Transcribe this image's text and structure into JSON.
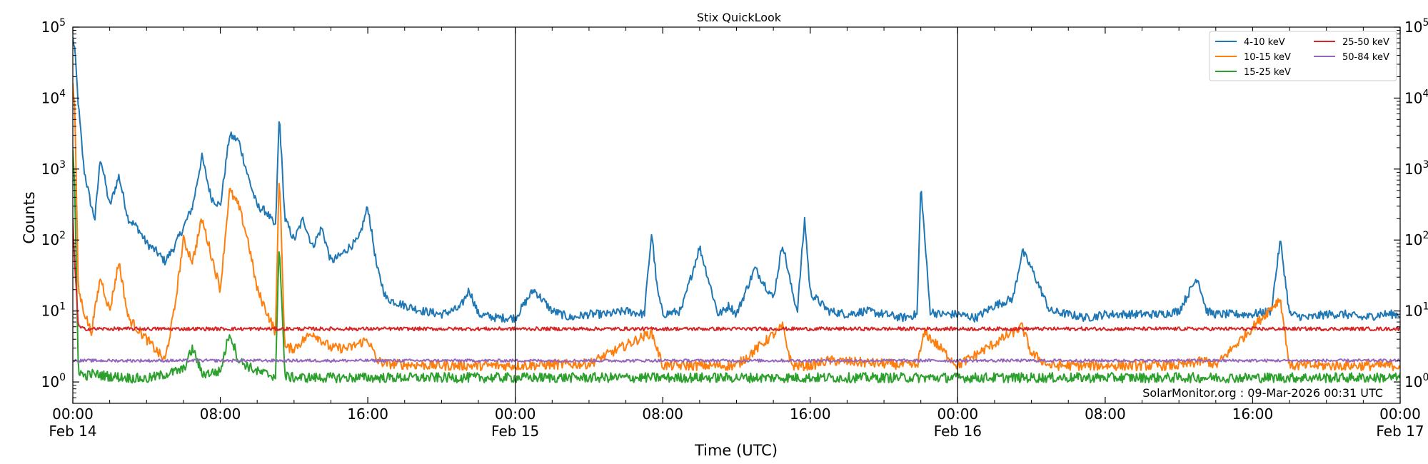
{
  "chart_data": {
    "type": "line",
    "title": "Stix QuickLook",
    "xlabel": "Time (UTC)",
    "ylabel": "Counts",
    "yscale": "log",
    "ylim": [
      0.5,
      100000
    ],
    "xlim_hours": [
      0,
      72
    ],
    "grid": false,
    "legend_position": "top-right",
    "annotation": "SolarMonitor.org : 09-Mar-2026 00:31 UTC",
    "x_ticks": [
      {
        "hour": 0,
        "line1": "00:00",
        "line2": "Feb 14"
      },
      {
        "hour": 8,
        "line1": "08:00",
        "line2": ""
      },
      {
        "hour": 16,
        "line1": "16:00",
        "line2": ""
      },
      {
        "hour": 24,
        "line1": "00:00",
        "line2": "Feb 15"
      },
      {
        "hour": 32,
        "line1": "08:00",
        "line2": ""
      },
      {
        "hour": 40,
        "line1": "16:00",
        "line2": ""
      },
      {
        "hour": 48,
        "line1": "00:00",
        "line2": "Feb 16"
      },
      {
        "hour": 56,
        "line1": "08:00",
        "line2": ""
      },
      {
        "hour": 64,
        "line1": "16:00",
        "line2": ""
      },
      {
        "hour": 72,
        "line1": "00:00",
        "line2": "Feb 17"
      }
    ],
    "y_ticks": [
      {
        "value": 1,
        "label": "10",
        "exp": "0"
      },
      {
        "value": 10,
        "label": "10",
        "exp": "1"
      },
      {
        "value": 100,
        "label": "10",
        "exp": "2"
      },
      {
        "value": 1000,
        "label": "10",
        "exp": "3"
      },
      {
        "value": 10000,
        "label": "10",
        "exp": "4"
      },
      {
        "value": 100000,
        "label": "10",
        "exp": "5"
      }
    ],
    "day_boundaries_hours": [
      24,
      48
    ],
    "series": [
      {
        "name": "4-10 keV",
        "color": "#1f77b4",
        "x": [
          0,
          0.1,
          0.3,
          0.6,
          1.0,
          1.2,
          1.5,
          2.0,
          2.5,
          3.0,
          3.5,
          4.0,
          4.5,
          5.0,
          5.5,
          6.0,
          6.5,
          7.0,
          7.5,
          8.0,
          8.5,
          9.0,
          9.5,
          10.0,
          10.5,
          11.0,
          11.2,
          11.5,
          12.0,
          12.5,
          13.0,
          13.5,
          14.0,
          14.5,
          15.0,
          15.5,
          16.0,
          16.5,
          17.0,
          18.0,
          19.0,
          20.0,
          21.0,
          21.5,
          22.0,
          23.0,
          24.0,
          25.0,
          26.0,
          26.5,
          27.0,
          28.0,
          29.0,
          30.0,
          31.0,
          31.4,
          31.7,
          32.0,
          33.0,
          34.0,
          35.0,
          35.3,
          35.6,
          36.0,
          37.0,
          38.0,
          38.5,
          39.0,
          39.3,
          39.7,
          40.0,
          41.0,
          42.0,
          43.0,
          44.0,
          45.0,
          45.8,
          46.0,
          46.5,
          47.0,
          48.0,
          49.0,
          50.0,
          51.0,
          51.5,
          52.0,
          53.0,
          54.0,
          55.0,
          56.0,
          57.0,
          58.0,
          59.0,
          60.0,
          61.0,
          61.5,
          62.0,
          63.0,
          64.0,
          65.0,
          65.5,
          66.0,
          67.0,
          68.0,
          69.0,
          70.0,
          71.0,
          72.0
        ],
        "values": [
          70000,
          50000,
          8000,
          1000,
          300,
          200,
          1500,
          300,
          800,
          200,
          150,
          90,
          70,
          50,
          80,
          150,
          300,
          1500,
          400,
          300,
          3000,
          2500,
          800,
          300,
          250,
          150,
          6000,
          200,
          100,
          200,
          80,
          150,
          50,
          60,
          80,
          100,
          300,
          40,
          15,
          12,
          10,
          9,
          11,
          20,
          9,
          8,
          8,
          20,
          10,
          9,
          8,
          9,
          9,
          10,
          9,
          130,
          20,
          9,
          10,
          80,
          9,
          10,
          12,
          9,
          40,
          15,
          90,
          20,
          10,
          200,
          18,
          10,
          9,
          10,
          9,
          8,
          9,
          600,
          10,
          9,
          9,
          8,
          12,
          15,
          70,
          40,
          10,
          9,
          8,
          9,
          9,
          9,
          9,
          10,
          30,
          10,
          9,
          9,
          9,
          10,
          100,
          9,
          8,
          9,
          9,
          8,
          9,
          9
        ]
      },
      {
        "name": "10-15 keV",
        "color": "#ff7f0e",
        "x": [
          0,
          0.1,
          0.3,
          0.6,
          1.0,
          1.5,
          2.0,
          2.5,
          3.0,
          4.0,
          5.0,
          5.5,
          6.0,
          6.5,
          7.0,
          8.0,
          8.5,
          9.0,
          9.5,
          10.0,
          10.5,
          11.0,
          11.2,
          11.5,
          12.0,
          13.0,
          14.0,
          15.0,
          16.0,
          16.5,
          17.0,
          20.0,
          24.0,
          28.0,
          31.4,
          32.0,
          35.3,
          36.0,
          38.5,
          39.0,
          40.0,
          41.0,
          45.8,
          46.2,
          48.0,
          51.5,
          52.0,
          53.0,
          57.0,
          60.0,
          61.5,
          62.0,
          65.5,
          66.0,
          72.0
        ],
        "values": [
          15000,
          8000,
          20,
          10,
          5,
          30,
          10,
          50,
          8,
          4,
          2,
          10,
          100,
          50,
          200,
          20,
          500,
          300,
          100,
          20,
          10,
          5,
          1000,
          3,
          3,
          5,
          3,
          3,
          4,
          2,
          1.8,
          1.7,
          1.7,
          1.8,
          5,
          1.7,
          1.7,
          1.7,
          6,
          1.7,
          1.7,
          2,
          1.7,
          5,
          1.7,
          6,
          2.5,
          1.7,
          1.7,
          1.7,
          2,
          1.7,
          15,
          1.7,
          1.7
        ]
      },
      {
        "name": "15-25 keV",
        "color": "#2ca02c",
        "x": [
          0,
          0.1,
          0.3,
          0.6,
          1.0,
          2.0,
          4.0,
          6.0,
          6.5,
          7.0,
          8.0,
          8.5,
          9.0,
          10.0,
          11.0,
          11.2,
          11.5,
          12.0,
          72.0
        ],
        "values": [
          2000,
          500,
          1.5,
          1.2,
          1.3,
          1.2,
          1.1,
          1.5,
          3,
          1.3,
          1.4,
          5,
          2,
          1.4,
          1.2,
          100,
          1.2,
          1.15,
          1.15
        ]
      },
      {
        "name": "25-50 keV",
        "color": "#d62728",
        "x": [
          0,
          0.1,
          0.3,
          0.6,
          1.0,
          72.0
        ],
        "values": [
          200,
          50,
          6,
          5.6,
          5.6,
          5.6
        ]
      },
      {
        "name": "50-84 keV",
        "color": "#9467bd",
        "x": [
          0,
          72.0
        ],
        "values": [
          2.0,
          2.0
        ]
      }
    ]
  }
}
